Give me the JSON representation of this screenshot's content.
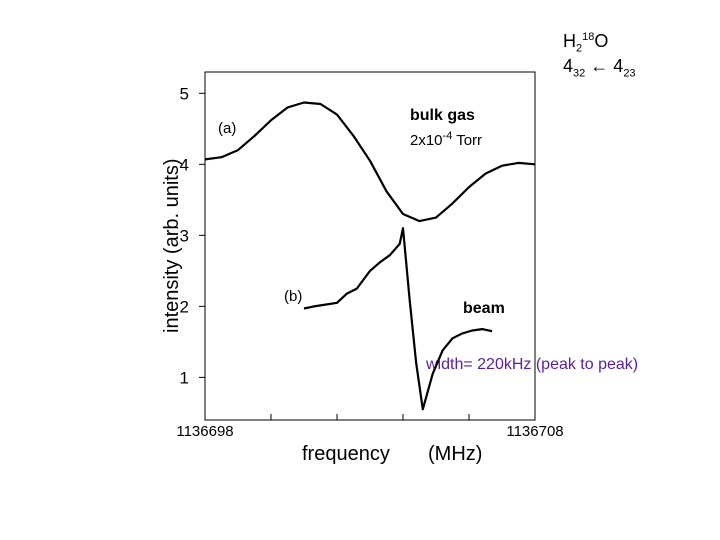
{
  "molecule": {
    "base": "H",
    "sub1": "2",
    "sup1": "18",
    "tail": "O"
  },
  "transition": {
    "upper": "4",
    "upper_sub": "32",
    "arrow": "←",
    "lower": "4",
    "lower_sub": "23"
  },
  "annotations": {
    "bulk_gas": "bulk gas",
    "pressure_prefix": "2x10",
    "pressure_exp": "-4",
    "pressure_unit": " Torr",
    "beam": "beam",
    "width_note": "width= 220kHz (peak to peak)"
  },
  "colors": {
    "width_note": "#5b1f9e",
    "trace": "#000000",
    "axis": "#000000"
  },
  "chart_data": {
    "type": "line",
    "title": "H2 18O 432 ← 423",
    "xlabel": "frequency (MHz)",
    "ylabel": "intensity (arb. units)",
    "xlim": [
      1136698,
      1136708
    ],
    "ylim": [
      0.4,
      5.3
    ],
    "xticks": [
      {
        "value": 1136698,
        "label": "1136698"
      },
      {
        "value": 1136700,
        "label": ""
      },
      {
        "value": 1136702,
        "label": ""
      },
      {
        "value": 1136704,
        "label": ""
      },
      {
        "value": 1136706,
        "label": ""
      },
      {
        "value": 1136708,
        "label": "1136708"
      }
    ],
    "xlabel_parts": [
      "frequency",
      "(MHz)"
    ],
    "yticks": [
      1,
      2,
      3,
      4,
      5
    ],
    "series": [
      {
        "name": "(a)",
        "x": [
          1136698.0,
          1136698.5,
          1136699.0,
          1136699.5,
          1136700.0,
          1136700.5,
          1136701.0,
          1136701.5,
          1136702.0,
          1136702.5,
          1136703.0,
          1136703.5,
          1136704.0,
          1136704.5,
          1136705.0,
          1136705.5,
          1136706.0,
          1136706.5,
          1136707.0,
          1136707.5,
          1136708.0
        ],
        "y": [
          4.07,
          4.1,
          4.2,
          4.4,
          4.62,
          4.8,
          4.87,
          4.85,
          4.7,
          4.4,
          4.05,
          3.62,
          3.3,
          3.2,
          3.25,
          3.45,
          3.68,
          3.87,
          3.98,
          4.02,
          4.0
        ]
      },
      {
        "name": "(b)",
        "x": [
          1136701.0,
          1136701.3,
          1136701.6,
          1136702.0,
          1136702.3,
          1136702.6,
          1136703.0,
          1136703.3,
          1136703.6,
          1136703.9,
          1136704.0,
          1136704.2,
          1136704.4,
          1136704.6,
          1136704.9,
          1136705.2,
          1136705.5,
          1136705.8,
          1136706.1,
          1136706.4,
          1136706.7
        ],
        "y": [
          1.97,
          2.0,
          2.02,
          2.05,
          2.18,
          2.25,
          2.5,
          2.62,
          2.72,
          2.88,
          3.1,
          2.1,
          1.2,
          0.55,
          1.05,
          1.38,
          1.55,
          1.62,
          1.66,
          1.68,
          1.65
        ]
      }
    ],
    "series_labels": [
      "(a)",
      "(b)"
    ]
  }
}
